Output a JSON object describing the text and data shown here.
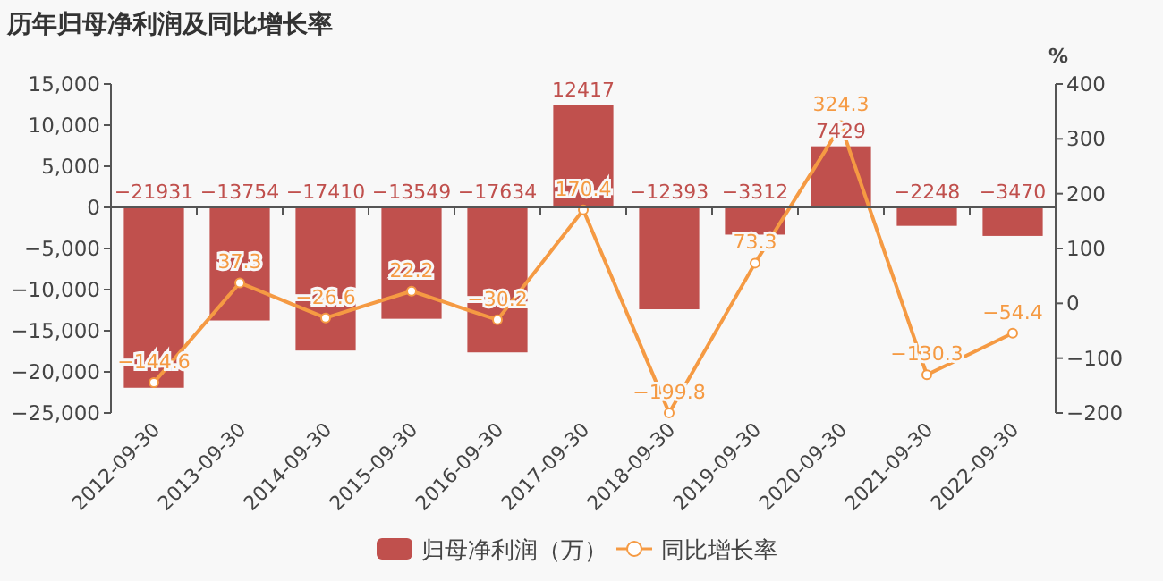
{
  "chart_data": {
    "type": "bar",
    "title": "历年归母净利润及同比增长率",
    "y2label": "%",
    "categories": [
      "2012-09-30",
      "2013-09-30",
      "2014-09-30",
      "2015-09-30",
      "2016-09-30",
      "2017-09-30",
      "2018-09-30",
      "2019-09-30",
      "2020-09-30",
      "2021-09-30",
      "2022-09-30"
    ],
    "series": [
      {
        "name": "归母净利润（万）",
        "color": "#c0504d",
        "values": [
          -21931,
          -13754,
          -17410,
          -13549,
          -17634,
          12417,
          -12393,
          -3312,
          7429,
          -2248,
          -3470
        ],
        "value_labels": [
          "−21931",
          "−13754",
          "−17410",
          "−13549",
          "−17634",
          "12417",
          "−12393",
          "−3312",
          "7429",
          "−2248",
          "−3470"
        ]
      },
      {
        "name": "同比增长率",
        "type": "line",
        "axis": "y2",
        "color": "#f59a43",
        "marker": "circle",
        "values": [
          -144.6,
          37.3,
          -26.6,
          22.2,
          -30.2,
          170.4,
          -199.8,
          73.3,
          324.3,
          -130.3,
          -54.4
        ],
        "value_labels": [
          "−144.6",
          "37.3",
          "−26.6",
          "22.2",
          "−30.2",
          "170.4",
          "−199.8",
          "73.3",
          "324.3",
          "−130.3",
          "−54.4"
        ]
      }
    ],
    "ylim": [
      -25000,
      15000
    ],
    "yticks": [
      {
        "value": -25000,
        "label": "−25,000"
      },
      {
        "value": -20000,
        "label": "−20,000"
      },
      {
        "value": -15000,
        "label": "−15,000"
      },
      {
        "value": -10000,
        "label": "−10,000"
      },
      {
        "value": -5000,
        "label": "−5,000"
      },
      0,
      {
        "value": 5000,
        "label": "5,000"
      },
      {
        "value": 10000,
        "label": "10,000"
      },
      {
        "value": 15000,
        "label": "15,000"
      }
    ],
    "y2lim": [
      -200,
      400
    ],
    "y2ticks": [
      {
        "value": -200,
        "label": "−200"
      },
      {
        "value": -100,
        "label": "−100"
      },
      0,
      100,
      200,
      300,
      400
    ],
    "legend": "bottom"
  }
}
